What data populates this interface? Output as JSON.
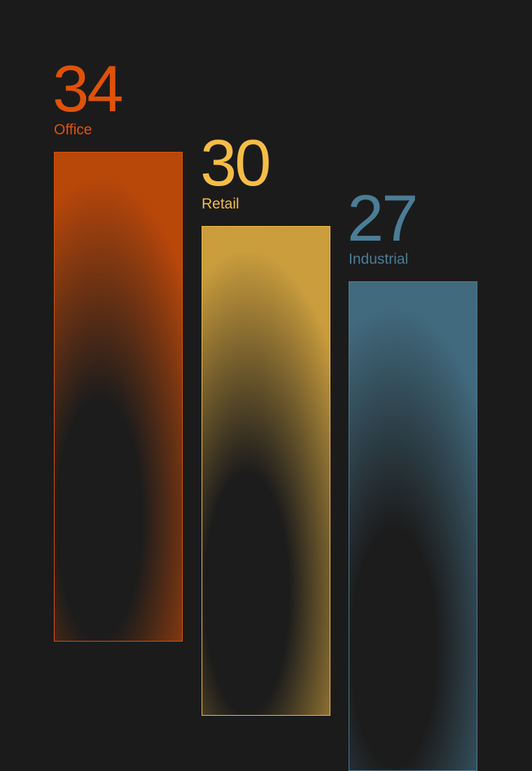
{
  "chart_data": {
    "type": "bar",
    "categories": [
      "Office",
      "Retail",
      "Industrial"
    ],
    "values": [
      34,
      30,
      27
    ],
    "colors": [
      "#e05206",
      "#f5bd45",
      "#4b7d96"
    ],
    "background": "#1b1b1b",
    "axes": "none",
    "grid": false
  }
}
